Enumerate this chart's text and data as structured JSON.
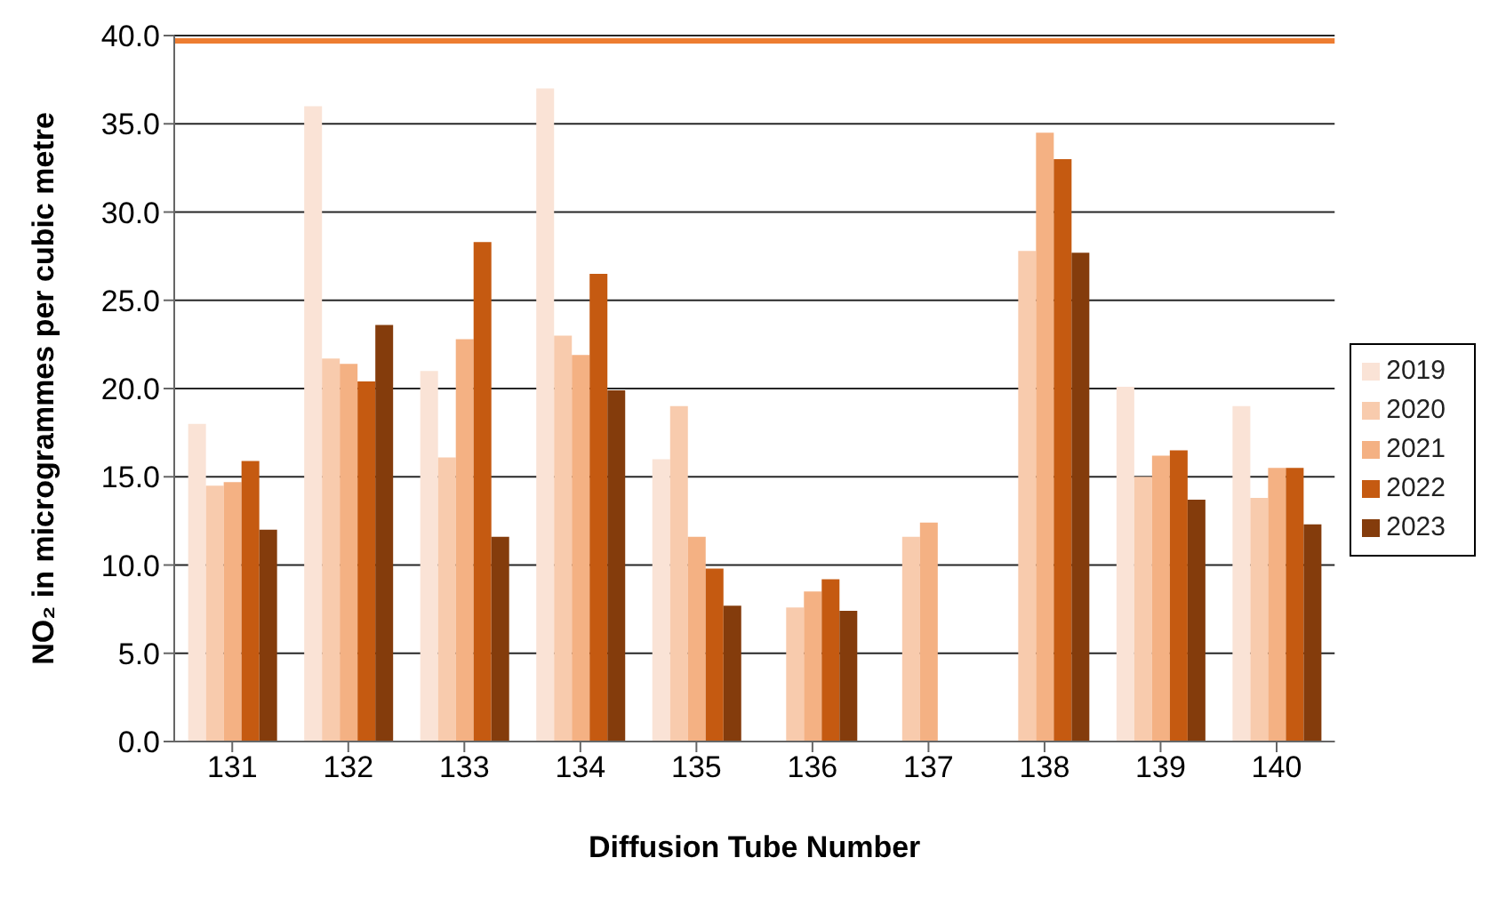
{
  "chart_data": {
    "type": "bar",
    "xlabel": "Diffusion Tube Number",
    "ylabel": "NO₂ in microgrammes per cubic metre",
    "categories": [
      "131",
      "132",
      "133",
      "134",
      "135",
      "136",
      "137",
      "138",
      "139",
      "140"
    ],
    "series": [
      {
        "name": "2019",
        "color": "#fae3d6",
        "values": [
          18.0,
          36.0,
          21.0,
          37.0,
          16.0,
          null,
          null,
          null,
          20.1,
          19.0
        ]
      },
      {
        "name": "2020",
        "color": "#f8cbad",
        "values": [
          14.5,
          21.7,
          16.1,
          23.0,
          19.0,
          7.6,
          11.6,
          27.8,
          15.0,
          13.8
        ]
      },
      {
        "name": "2021",
        "color": "#f4b183",
        "values": [
          14.7,
          21.4,
          22.8,
          21.9,
          11.6,
          8.5,
          12.4,
          34.5,
          16.2,
          15.5
        ]
      },
      {
        "name": "2022",
        "color": "#c55a11",
        "values": [
          15.9,
          20.4,
          28.3,
          26.5,
          9.8,
          9.2,
          null,
          33.0,
          16.5,
          15.5
        ]
      },
      {
        "name": "2023",
        "color": "#843c0c",
        "values": [
          12.0,
          23.6,
          11.6,
          19.9,
          7.7,
          7.4,
          null,
          27.7,
          13.7,
          12.3
        ]
      }
    ],
    "ylim": [
      0,
      40
    ],
    "yticks": [
      {
        "value": 0,
        "label": "0.0"
      },
      {
        "value": 5,
        "label": "5.0"
      },
      {
        "value": 10,
        "label": "10.0"
      },
      {
        "value": 15,
        "label": "15.0"
      },
      {
        "value": 20,
        "label": "20.0"
      },
      {
        "value": 25,
        "label": "25.0"
      },
      {
        "value": 30,
        "label": "30.0"
      },
      {
        "value": 35,
        "label": "35.0"
      },
      {
        "value": 40,
        "label": "40.0"
      }
    ],
    "grid": "y",
    "legend": "right",
    "ref_lines": [
      {
        "axis": "y",
        "value": 39.7,
        "color": "#ed7d31"
      }
    ]
  }
}
